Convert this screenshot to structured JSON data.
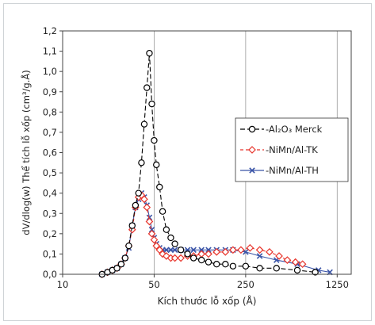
{
  "chart_data": {
    "type": "line",
    "x_scale": "log",
    "xlabel": "Kích thước lỗ xốp (Å)",
    "ylabel": "dV/dlog(w) Thể tích lỗ xốp (cm³/g.Å)",
    "xlim": [
      10,
      1600
    ],
    "ylim": [
      0,
      1.2
    ],
    "xticks": [
      10,
      50,
      250,
      1250
    ],
    "xtick_labels": [
      "10",
      "50",
      "250",
      "1250"
    ],
    "yticks": [
      0,
      0.1,
      0.2,
      0.3,
      0.4,
      0.5,
      0.6,
      0.7,
      0.8,
      0.9,
      1.0,
      1.1,
      1.2
    ],
    "ytick_labels": [
      "0,0",
      "0,1",
      "0,2",
      "0,3",
      "0,4",
      "0,5",
      "0,6",
      "0,7",
      "0,8",
      "0,9",
      "1,0",
      "1,1",
      "1,2"
    ],
    "grid": "vertical",
    "legend_position": "right",
    "series": [
      {
        "name": "Al2O3 Merck",
        "legend_label": "-Al₂O₃ Merck",
        "color": "#000000",
        "marker": "circle",
        "dash": "6,3",
        "x": [
          20,
          22,
          24,
          26,
          28,
          30,
          32,
          34,
          36,
          38,
          40,
          42,
          44,
          46,
          48,
          50,
          52,
          55,
          58,
          62,
          67,
          72,
          80,
          90,
          100,
          115,
          130,
          150,
          175,
          200,
          250,
          320,
          430,
          620,
          850
        ],
        "y": [
          0.0,
          0.01,
          0.02,
          0.03,
          0.05,
          0.08,
          0.14,
          0.24,
          0.34,
          0.4,
          0.55,
          0.74,
          0.92,
          1.09,
          0.84,
          0.66,
          0.54,
          0.43,
          0.31,
          0.22,
          0.18,
          0.15,
          0.12,
          0.1,
          0.08,
          0.07,
          0.06,
          0.05,
          0.05,
          0.04,
          0.04,
          0.03,
          0.03,
          0.02,
          0.01
        ]
      },
      {
        "name": "NiMn/Al-TK",
        "legend_label": "-NiMn/Al-TK",
        "color": "#e8352c",
        "marker": "diamond",
        "dash": "4,3",
        "x": [
          20,
          22,
          24,
          26,
          28,
          30,
          32,
          34,
          36,
          38,
          40,
          42,
          44,
          46,
          48,
          50,
          52,
          55,
          58,
          62,
          67,
          72,
          80,
          90,
          100,
          115,
          130,
          150,
          175,
          200,
          230,
          270,
          320,
          380,
          450,
          520,
          600,
          680
        ],
        "y": [
          0.0,
          0.01,
          0.02,
          0.03,
          0.05,
          0.08,
          0.14,
          0.22,
          0.33,
          0.38,
          0.39,
          0.37,
          0.33,
          0.26,
          0.2,
          0.17,
          0.14,
          0.12,
          0.1,
          0.09,
          0.08,
          0.08,
          0.08,
          0.09,
          0.09,
          0.1,
          0.1,
          0.11,
          0.11,
          0.12,
          0.12,
          0.13,
          0.12,
          0.11,
          0.09,
          0.07,
          0.06,
          0.05
        ]
      },
      {
        "name": "NiMn/Al-TH",
        "legend_label": "-NiMn/Al-TH",
        "color": "#3b55a8",
        "marker": "x",
        "dash": "",
        "x": [
          20,
          22,
          24,
          26,
          28,
          30,
          32,
          34,
          36,
          38,
          40,
          42,
          44,
          46,
          48,
          50,
          52,
          55,
          58,
          62,
          67,
          72,
          80,
          90,
          100,
          115,
          130,
          150,
          175,
          200,
          250,
          320,
          430,
          620,
          900,
          1100
        ],
        "y": [
          0.0,
          0.01,
          0.02,
          0.03,
          0.05,
          0.08,
          0.13,
          0.24,
          0.33,
          0.37,
          0.4,
          0.38,
          0.34,
          0.28,
          0.22,
          0.18,
          0.15,
          0.13,
          0.12,
          0.12,
          0.12,
          0.12,
          0.12,
          0.12,
          0.12,
          0.12,
          0.12,
          0.12,
          0.12,
          0.12,
          0.11,
          0.09,
          0.07,
          0.05,
          0.02,
          0.01
        ]
      }
    ]
  }
}
